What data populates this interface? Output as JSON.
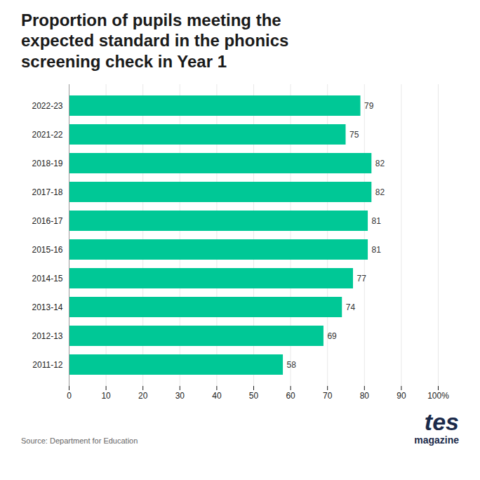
{
  "chart_data": {
    "type": "bar",
    "orientation": "horizontal",
    "title": "Proportion of pupils meeting the\nexpected standard in the phonics\nscreening check in Year 1",
    "categories": [
      "2022-23",
      "2021-22",
      "2018-19",
      "2017-18",
      "2016-17",
      "2015-16",
      "2014-15",
      "2013-14",
      "2012-13",
      "2011-12"
    ],
    "values": [
      79,
      75,
      82,
      82,
      81,
      81,
      77,
      74,
      69,
      58
    ],
    "color": "#00C896",
    "xlim": [
      0,
      100
    ],
    "xticks": [
      0,
      10,
      20,
      30,
      40,
      50,
      60,
      70,
      80,
      90,
      {
        "value": 100,
        "label": "100%"
      }
    ],
    "grid": true,
    "data_labels": true,
    "annotations": [
      "Source: Department for Education",
      "tes",
      "magazine"
    ]
  }
}
